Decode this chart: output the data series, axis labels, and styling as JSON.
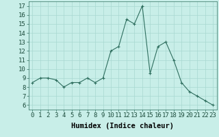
{
  "x": [
    0,
    1,
    2,
    3,
    4,
    5,
    6,
    7,
    8,
    9,
    10,
    11,
    12,
    13,
    14,
    15,
    16,
    17,
    18,
    19,
    20,
    21,
    22,
    23
  ],
  "y": [
    8.5,
    9.0,
    9.0,
    8.8,
    8.0,
    8.5,
    8.5,
    9.0,
    8.5,
    9.0,
    12.0,
    12.5,
    15.5,
    15.0,
    17.0,
    9.5,
    12.5,
    13.0,
    11.0,
    8.5,
    7.5,
    7.0,
    6.5,
    6.0
  ],
  "xlabel": "Humidex (Indice chaleur)",
  "ylim": [
    5.5,
    17.5
  ],
  "xlim": [
    -0.5,
    23.5
  ],
  "yticks": [
    6,
    7,
    8,
    9,
    10,
    11,
    12,
    13,
    14,
    15,
    16,
    17
  ],
  "xticks": [
    0,
    1,
    2,
    3,
    4,
    5,
    6,
    7,
    8,
    9,
    10,
    11,
    12,
    13,
    14,
    15,
    16,
    17,
    18,
    19,
    20,
    21,
    22,
    23
  ],
  "line_color": "#2e6e5e",
  "marker_color": "#2e6e5e",
  "bg_color": "#c8eee8",
  "grid_color": "#a8d8d0",
  "tick_label_fontsize": 6.5,
  "xlabel_fontsize": 7.5
}
